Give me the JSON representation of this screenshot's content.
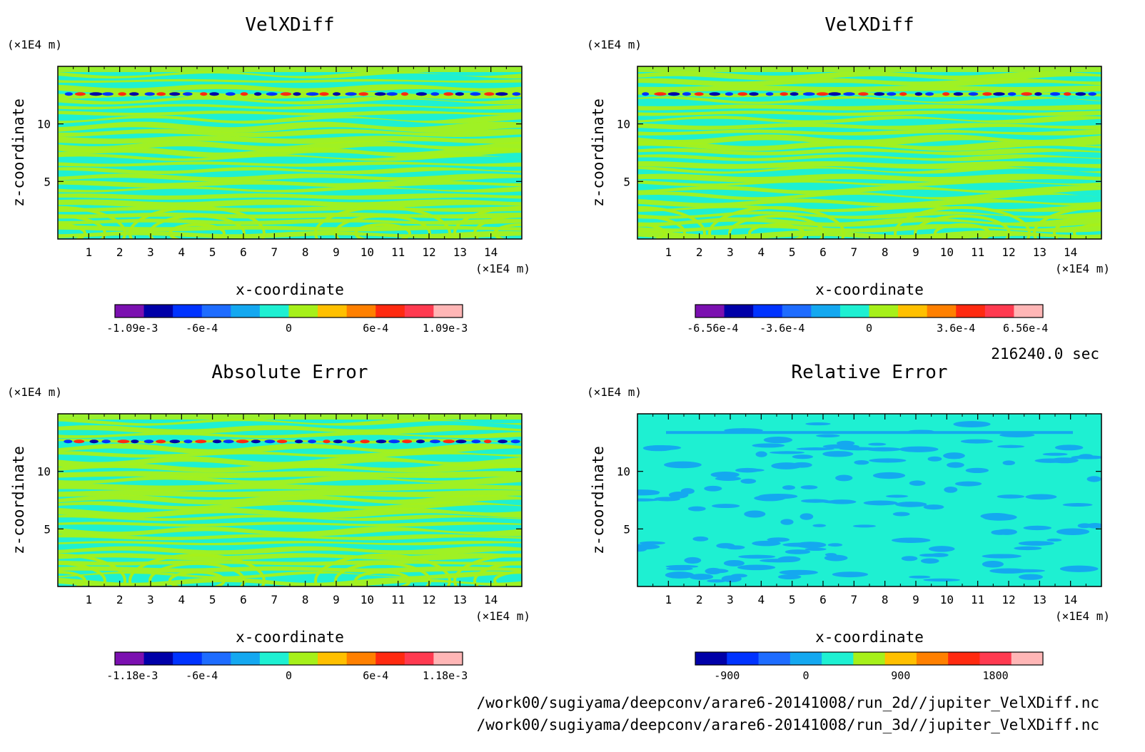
{
  "timestamp": "216240.0 sec",
  "footer_lines": [
    "/work00/sugiyama/deepconv/arare6-20141008/run_2d//jupiter_VelXDiff.nc",
    "/work00/sugiyama/deepconv/arare6-20141008/run_3d//jupiter_VelXDiff.nc"
  ],
  "colors": {
    "ramp11": [
      "#7b10b0",
      "#0000a8",
      "#0033ff",
      "#1e6cff",
      "#14a8f0",
      "#1ef0d2",
      "#a6f01a",
      "#ffc000",
      "#ff8000",
      "#ff2a10",
      "#ff3a50",
      "#ffb6b6"
    ],
    "ramp_rel": [
      "#0000a8",
      "#0033ff",
      "#1e6cff",
      "#14a8f0",
      "#1ef0d2",
      "#a6f01a",
      "#ffc000",
      "#ff8000",
      "#ff2a10",
      "#ff3a50",
      "#ffb6b6"
    ]
  },
  "chart_data": [
    {
      "type": "heatmap",
      "title": "VelXDiff",
      "xlabel": "x-coordinate",
      "ylabel": "z-coordinate",
      "x_unit": "(×1E4 m)",
      "y_unit": "(×1E4 m)",
      "xlim": [
        0,
        15
      ],
      "ylim": [
        0,
        15
      ],
      "x_ticks": [
        "1",
        "2",
        "3",
        "4",
        "5",
        "6",
        "7",
        "8",
        "9",
        "10",
        "11",
        "12",
        "13",
        "14"
      ],
      "y_ticks": [
        "5",
        "10"
      ],
      "colorbar_labels": [
        "-1.09e-3",
        "-6e-4",
        "0",
        "6e-4",
        "1.09e-3"
      ],
      "colorbar_range": [
        -0.00109,
        0.00109
      ],
      "colorbar_colors": 12,
      "dominant_colors": [
        "#1ef0d2",
        "#a6f01a"
      ]
    },
    {
      "type": "heatmap",
      "title": "VelXDiff",
      "xlabel": "x-coordinate",
      "ylabel": "z-coordinate",
      "x_unit": "(×1E4 m)",
      "y_unit": "(×1E4 m)",
      "xlim": [
        0,
        15
      ],
      "ylim": [
        0,
        15
      ],
      "x_ticks": [
        "1",
        "2",
        "3",
        "4",
        "5",
        "6",
        "7",
        "8",
        "9",
        "10",
        "11",
        "12",
        "13",
        "14"
      ],
      "y_ticks": [
        "5",
        "10"
      ],
      "colorbar_labels": [
        "-6.56e-4",
        "-3.6e-4",
        "0",
        "3.6e-4",
        "6.56e-4"
      ],
      "colorbar_range": [
        -0.000656,
        0.000656
      ],
      "colorbar_colors": 12,
      "dominant_colors": [
        "#1ef0d2",
        "#a6f01a"
      ]
    },
    {
      "type": "heatmap",
      "title": "Absolute Error",
      "xlabel": "x-coordinate",
      "ylabel": "z-coordinate",
      "x_unit": "(×1E4 m)",
      "y_unit": "(×1E4 m)",
      "xlim": [
        0,
        15
      ],
      "ylim": [
        0,
        15
      ],
      "x_ticks": [
        "1",
        "2",
        "3",
        "4",
        "5",
        "6",
        "7",
        "8",
        "9",
        "10",
        "11",
        "12",
        "13",
        "14"
      ],
      "y_ticks": [
        "5",
        "10"
      ],
      "colorbar_labels": [
        "-1.18e-3",
        "-6e-4",
        "0",
        "6e-4",
        "1.18e-3"
      ],
      "colorbar_range": [
        -0.00118,
        0.00118
      ],
      "colorbar_colors": 12,
      "dominant_colors": [
        "#1ef0d2",
        "#a6f01a"
      ]
    },
    {
      "type": "heatmap",
      "title": "Relative Error",
      "xlabel": "x-coordinate",
      "ylabel": "z-coordinate",
      "x_unit": "(×1E4 m)",
      "y_unit": "(×1E4 m)",
      "xlim": [
        0,
        15
      ],
      "ylim": [
        0,
        15
      ],
      "x_ticks": [
        "1",
        "2",
        "3",
        "4",
        "5",
        "6",
        "7",
        "8",
        "9",
        "10",
        "11",
        "12",
        "13",
        "14"
      ],
      "y_ticks": [
        "5",
        "10"
      ],
      "colorbar_labels": [
        "-900",
        "0",
        "900",
        "1800"
      ],
      "colorbar_colors": 11,
      "dominant_colors": [
        "#1ef0d2",
        "#14a8f0"
      ]
    }
  ]
}
